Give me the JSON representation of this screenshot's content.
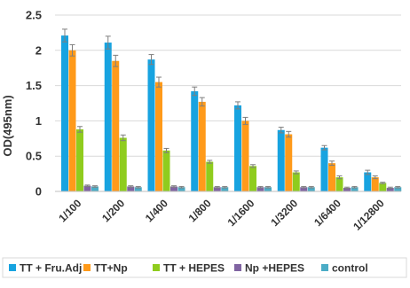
{
  "chart_data": {
    "type": "bar",
    "ylabel": "OD(495nm)",
    "ylim": [
      0,
      2.5
    ],
    "yticks": [
      "0",
      "0.5",
      "1",
      "1.5",
      "2",
      "2.5"
    ],
    "grid": true,
    "legend_position": "bottom",
    "categories": [
      "1/100",
      "1/200",
      "1/400",
      "1/800",
      "1/1600",
      "1/3200",
      "1/6400",
      "1/12800"
    ],
    "series": [
      {
        "name": "TT + Fru.Adj",
        "color": "#17a3e0",
        "values": [
          2.21,
          2.11,
          1.87,
          1.42,
          1.22,
          0.87,
          0.62,
          0.27
        ],
        "errors": [
          0.09,
          0.09,
          0.07,
          0.06,
          0.05,
          0.04,
          0.03,
          0.03
        ]
      },
      {
        "name": "TT+Np",
        "color": "#ff9a1a",
        "values": [
          2.0,
          1.85,
          1.55,
          1.27,
          1.0,
          0.81,
          0.4,
          0.2
        ],
        "errors": [
          0.08,
          0.08,
          0.07,
          0.06,
          0.05,
          0.04,
          0.03,
          0.02
        ]
      },
      {
        "name": "TT + HEPES",
        "color": "#8fcc1e",
        "values": [
          0.88,
          0.76,
          0.58,
          0.42,
          0.36,
          0.27,
          0.2,
          0.12
        ],
        "errors": [
          0.04,
          0.04,
          0.03,
          0.02,
          0.02,
          0.02,
          0.02,
          0.01
        ]
      },
      {
        "name": "Np +HEPES",
        "color": "#8064a2",
        "values": [
          0.08,
          0.07,
          0.07,
          0.06,
          0.06,
          0.06,
          0.05,
          0.05
        ],
        "errors": [
          0.01,
          0.01,
          0.01,
          0.01,
          0.01,
          0.01,
          0.01,
          0.01
        ]
      },
      {
        "name": "control",
        "color": "#4bacc6",
        "values": [
          0.07,
          0.06,
          0.06,
          0.06,
          0.06,
          0.06,
          0.06,
          0.06
        ],
        "errors": [
          0.01,
          0.01,
          0.01,
          0.01,
          0.01,
          0.01,
          0.01,
          0.01
        ]
      }
    ]
  }
}
